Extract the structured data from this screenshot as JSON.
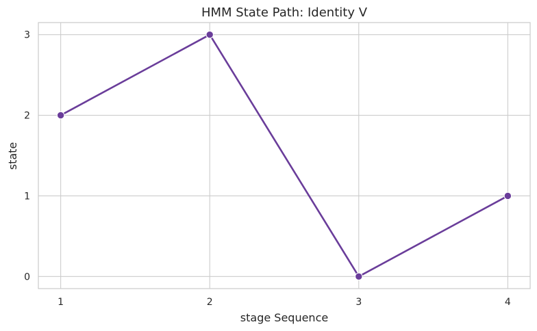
{
  "chart_data": {
    "type": "line",
    "title": "HMM State Path: Identity V",
    "xlabel": "stage Sequence",
    "ylabel": "state",
    "x": [
      1,
      2,
      3,
      4
    ],
    "series": [
      {
        "values": [
          2,
          3,
          0,
          1
        ]
      }
    ],
    "xticks": [
      1,
      2,
      3,
      4
    ],
    "yticks": [
      0,
      1,
      2,
      3
    ],
    "xlim": [
      0.85,
      4.15
    ],
    "ylim": [
      -0.15,
      3.15
    ],
    "grid": true,
    "markers": true,
    "colors": {
      "line": "#6a3d9a",
      "grid": "#cccccc",
      "spine": "#cccccc",
      "text": "#262626"
    }
  }
}
